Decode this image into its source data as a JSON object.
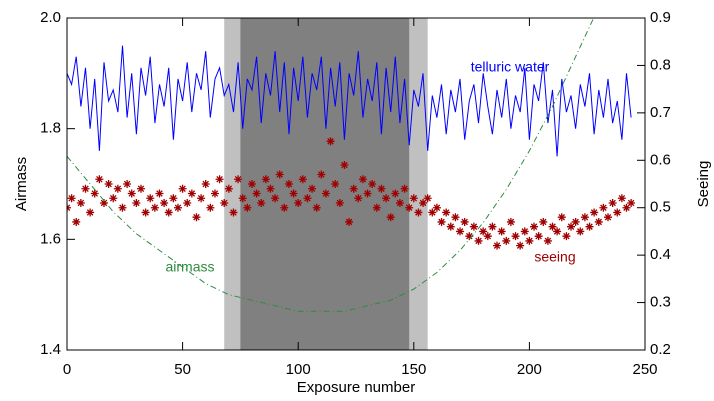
{
  "chart_data": {
    "type": "line",
    "xlabel": "Exposure number",
    "ylabel": "Airmass",
    "y2label": "Seeing",
    "xlim": [
      0,
      250
    ],
    "xticks": [
      0,
      50,
      100,
      150,
      200,
      250
    ],
    "ylim": [
      1.4,
      2.0
    ],
    "yticks": [
      1.4,
      1.6,
      1.8,
      {
        "value": 2.0,
        "label": "2.0"
      }
    ],
    "y2lim": [
      0.2,
      0.9
    ],
    "y2ticks": [
      0.2,
      0.3,
      0.4,
      0.5,
      0.6,
      0.7,
      0.8,
      0.9
    ],
    "shaded_regions": [
      {
        "xlim": [
          68,
          156
        ],
        "color": "#c0c0c0"
      },
      {
        "xlim": [
          75,
          148
        ],
        "color": "#808080"
      }
    ],
    "series": [
      {
        "name": "telluric water",
        "color": "#0000ff",
        "style": "line",
        "x": [
          0,
          2,
          4,
          6,
          8,
          10,
          12,
          14,
          16,
          18,
          20,
          22,
          24,
          26,
          28,
          30,
          32,
          34,
          36,
          38,
          40,
          42,
          44,
          46,
          48,
          50,
          52,
          54,
          56,
          58,
          60,
          62,
          64,
          66,
          68,
          70,
          72,
          74,
          76,
          78,
          80,
          82,
          84,
          86,
          88,
          90,
          92,
          94,
          96,
          98,
          100,
          102,
          104,
          106,
          108,
          110,
          112,
          114,
          116,
          118,
          120,
          122,
          124,
          126,
          128,
          130,
          132,
          134,
          136,
          138,
          140,
          142,
          144,
          146,
          148,
          150,
          152,
          154,
          156,
          158,
          160,
          162,
          164,
          166,
          168,
          170,
          172,
          174,
          176,
          178,
          180,
          182,
          184,
          186,
          188,
          190,
          192,
          194,
          196,
          198,
          200,
          202,
          204,
          206,
          208,
          210,
          212,
          214,
          216,
          218,
          220,
          222,
          224,
          226,
          228,
          230,
          232,
          234,
          236,
          238,
          240,
          242,
          244
        ],
        "values": [
          1.9,
          1.88,
          1.93,
          1.84,
          1.91,
          1.8,
          1.89,
          1.76,
          1.92,
          1.85,
          1.87,
          1.83,
          1.95,
          1.82,
          1.9,
          1.79,
          1.91,
          1.86,
          1.93,
          1.81,
          1.88,
          1.84,
          1.91,
          1.78,
          1.89,
          1.85,
          1.92,
          1.83,
          1.9,
          1.87,
          1.94,
          1.82,
          1.89,
          1.91,
          1.86,
          1.88,
          1.83,
          1.92,
          1.8,
          1.89,
          1.87,
          1.93,
          1.81,
          1.9,
          1.86,
          1.94,
          1.83,
          1.92,
          1.79,
          1.91,
          1.85,
          1.93,
          1.82,
          1.9,
          1.87,
          1.93,
          1.8,
          1.91,
          1.84,
          1.92,
          1.78,
          1.9,
          1.86,
          1.94,
          1.82,
          1.89,
          1.85,
          1.92,
          1.79,
          1.91,
          1.83,
          1.93,
          1.81,
          1.89,
          1.77,
          1.87,
          1.84,
          1.9,
          1.76,
          1.86,
          1.82,
          1.88,
          1.79,
          1.87,
          1.83,
          1.89,
          1.78,
          1.85,
          1.88,
          1.81,
          1.9,
          1.84,
          1.79,
          1.87,
          1.82,
          1.89,
          1.8,
          1.86,
          1.83,
          1.91,
          1.78,
          1.88,
          1.85,
          1.92,
          1.81,
          1.87,
          1.75,
          1.89,
          1.83,
          1.86,
          1.8,
          1.88,
          1.84,
          1.9,
          1.79,
          1.87,
          1.82,
          1.89,
          1.81,
          1.85,
          1.78,
          1.9,
          1.82
        ]
      },
      {
        "name": "seeing",
        "color": "#a00000",
        "style": "scatter",
        "axis": "y2",
        "x": [
          0,
          2,
          4,
          6,
          8,
          10,
          12,
          14,
          16,
          18,
          20,
          22,
          24,
          26,
          28,
          30,
          32,
          34,
          36,
          38,
          40,
          42,
          44,
          46,
          48,
          50,
          52,
          54,
          56,
          58,
          60,
          62,
          64,
          66,
          68,
          70,
          72,
          74,
          76,
          78,
          80,
          82,
          84,
          86,
          88,
          90,
          92,
          94,
          96,
          98,
          100,
          102,
          104,
          106,
          108,
          110,
          112,
          114,
          116,
          118,
          120,
          122,
          124,
          126,
          128,
          130,
          132,
          134,
          136,
          138,
          140,
          142,
          144,
          146,
          148,
          150,
          152,
          154,
          156,
          158,
          160,
          162,
          164,
          166,
          168,
          170,
          172,
          174,
          176,
          178,
          180,
          182,
          184,
          186,
          188,
          190,
          192,
          194,
          196,
          198,
          200,
          202,
          204,
          206,
          208,
          210,
          212,
          214,
          216,
          218,
          220,
          222,
          224,
          226,
          228,
          230,
          232,
          234,
          236,
          238,
          240,
          242,
          244
        ],
        "values": [
          0.5,
          0.52,
          0.47,
          0.51,
          0.54,
          0.49,
          0.53,
          0.56,
          0.51,
          0.55,
          0.52,
          0.54,
          0.5,
          0.55,
          0.53,
          0.51,
          0.54,
          0.49,
          0.52,
          0.5,
          0.53,
          0.51,
          0.49,
          0.52,
          0.5,
          0.54,
          0.51,
          0.53,
          0.48,
          0.52,
          0.55,
          0.5,
          0.53,
          0.56,
          0.51,
          0.54,
          0.49,
          0.56,
          0.52,
          0.5,
          0.55,
          0.53,
          0.51,
          0.56,
          0.54,
          0.52,
          0.57,
          0.5,
          0.55,
          0.53,
          0.51,
          0.56,
          0.52,
          0.54,
          0.5,
          0.57,
          0.53,
          0.64,
          0.55,
          0.51,
          0.59,
          0.47,
          0.54,
          0.52,
          0.56,
          0.53,
          0.55,
          0.5,
          0.54,
          0.52,
          0.48,
          0.53,
          0.51,
          0.54,
          0.5,
          0.52,
          0.49,
          0.51,
          0.52,
          0.49,
          0.5,
          0.47,
          0.49,
          0.46,
          0.48,
          0.45,
          0.47,
          0.44,
          0.46,
          0.43,
          0.45,
          0.44,
          0.46,
          0.42,
          0.45,
          0.43,
          0.47,
          0.44,
          0.42,
          0.45,
          0.43,
          0.46,
          0.44,
          0.47,
          0.43,
          0.46,
          0.45,
          0.48,
          0.44,
          0.46,
          0.47,
          0.45,
          0.48,
          0.46,
          0.49,
          0.47,
          0.5,
          0.48,
          0.51,
          0.49,
          0.52,
          0.5,
          0.51
        ]
      },
      {
        "name": "airmass",
        "color": "#2e8b3e",
        "style": "dashdot",
        "x": [
          0,
          10,
          20,
          30,
          40,
          50,
          60,
          70,
          80,
          90,
          100,
          110,
          120,
          130,
          140,
          150,
          160,
          170,
          180,
          190,
          200,
          210,
          220,
          230
        ],
        "values": [
          1.75,
          1.7,
          1.65,
          1.61,
          1.58,
          1.55,
          1.52,
          1.5,
          1.49,
          1.48,
          1.47,
          1.47,
          1.47,
          1.48,
          1.49,
          1.51,
          1.54,
          1.58,
          1.63,
          1.69,
          1.76,
          1.84,
          1.93,
          2.02
        ]
      }
    ]
  }
}
